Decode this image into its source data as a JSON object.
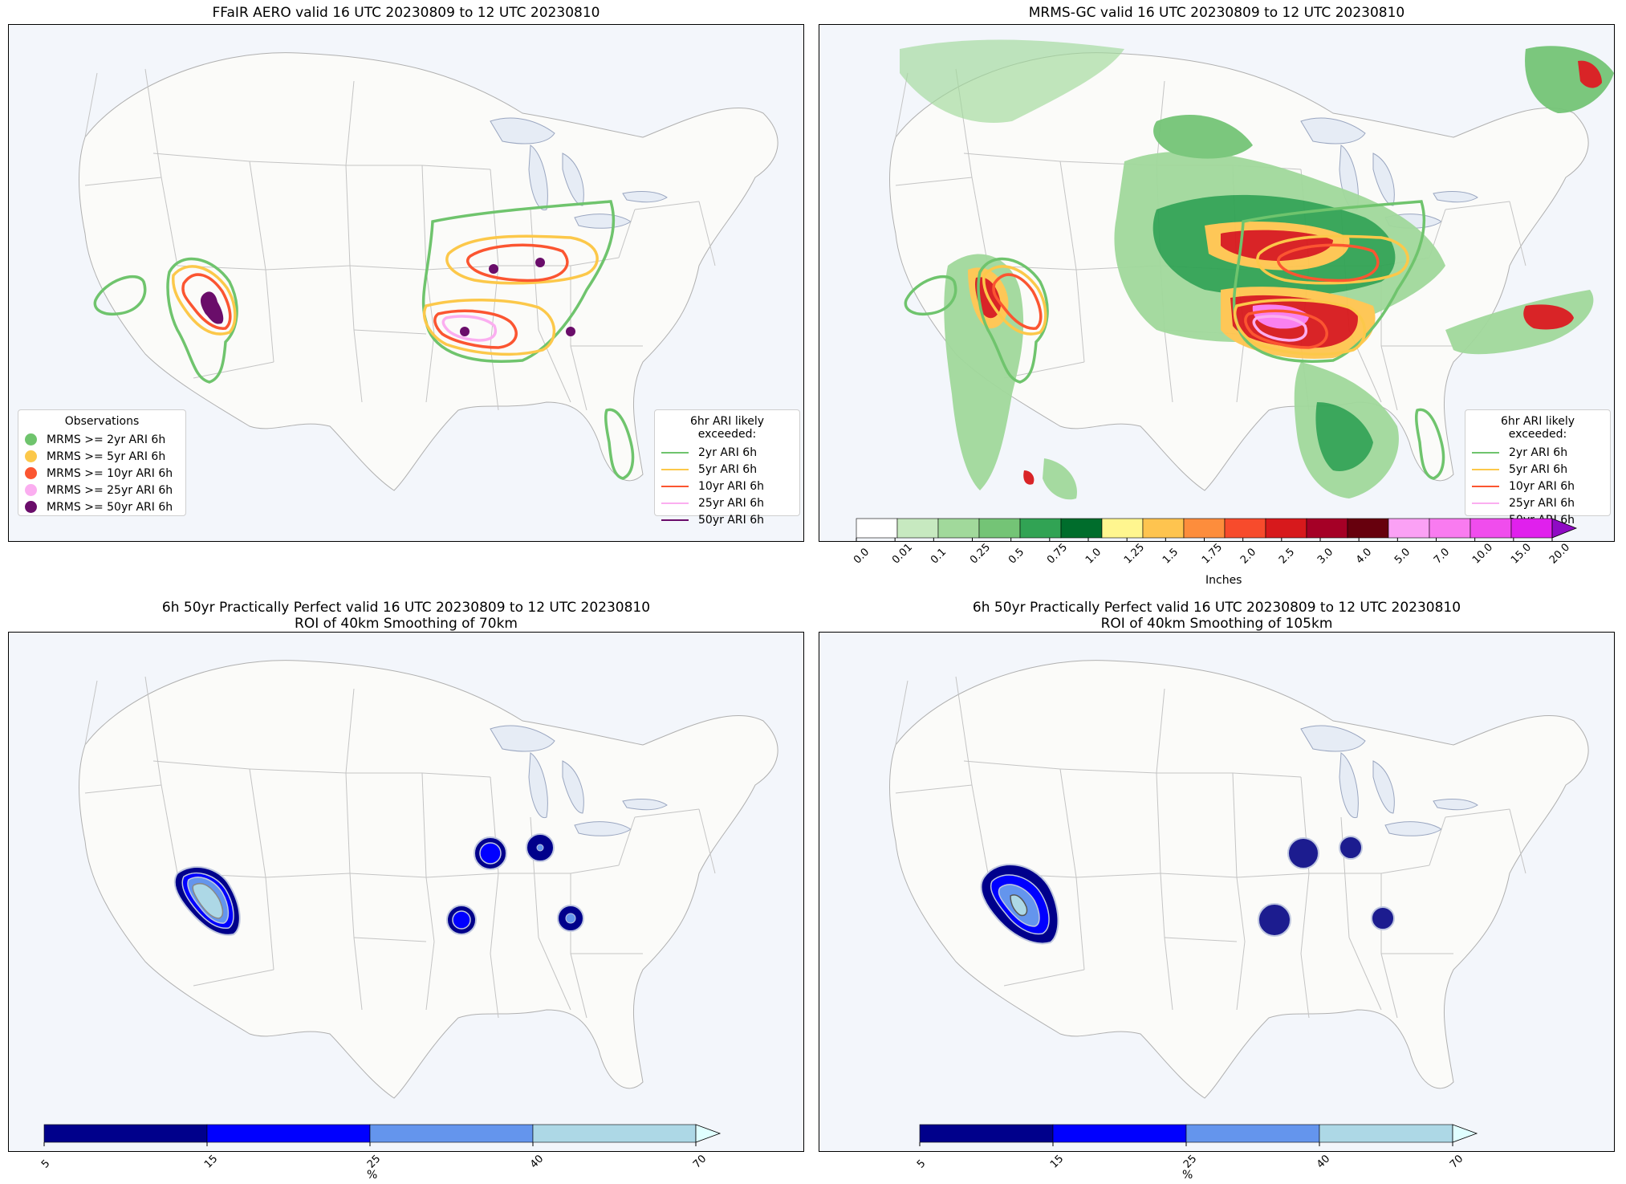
{
  "panels": [
    {
      "id": "p1",
      "title_line1": "FFaIR AERO valid 16 UTC 20230809 to 12 UTC 20230810",
      "title_line2": ""
    },
    {
      "id": "p2",
      "title_line1": "MRMS-GC valid 16 UTC 20230809 to 12 UTC 20230810",
      "title_line2": ""
    },
    {
      "id": "p3",
      "title_line1": "6h 50yr Practically Perfect valid 16 UTC 20230809 to 12 UTC 20230810",
      "title_line2": "ROI of 40km Smoothing of 70km"
    },
    {
      "id": "p4",
      "title_line1": "6h 50yr Practically Perfect valid 16 UTC 20230809 to 12 UTC 20230810",
      "title_line2": "ROI of 40km Smoothing of 105km"
    }
  ],
  "observations_legend": {
    "title": "Observations",
    "items": [
      {
        "label": "MRMS >= 2yr ARI 6h",
        "color": "#6fc46d"
      },
      {
        "label": "MRMS >= 5yr ARI 6h",
        "color": "#fcc84a"
      },
      {
        "label": "MRMS >= 10yr ARI 6h",
        "color": "#fb5531"
      },
      {
        "label": "MRMS >= 25yr ARI 6h",
        "color": "#fbaef0"
      },
      {
        "label": "MRMS >= 50yr ARI 6h",
        "color": "#6a0d6a"
      }
    ]
  },
  "ari_legend": {
    "title": "6hr ARI likely exceeded:",
    "items": [
      {
        "label": "2yr ARI 6h",
        "color": "#6fc46d"
      },
      {
        "label": "5yr ARI 6h",
        "color": "#fcc84a"
      },
      {
        "label": "10yr ARI 6h",
        "color": "#fb5531"
      },
      {
        "label": "25yr ARI 6h",
        "color": "#fbaef0"
      },
      {
        "label": "50yr ARI 6h",
        "color": "#6a0d6a"
      }
    ]
  },
  "precip_colorbar": {
    "label": "Inches",
    "ticks": [
      "0.0",
      "0.01",
      "0.1",
      "0.25",
      "0.5",
      "0.75",
      "1.0",
      "1.25",
      "1.5",
      "1.75",
      "2.0",
      "2.5",
      "3.0",
      "4.0",
      "5.0",
      "7.0",
      "10.0",
      "15.0",
      "20.0"
    ],
    "colors": [
      "#ffffff",
      "#c7e9c0",
      "#a1d99b",
      "#74c476",
      "#31a354",
      "#006d2c",
      "#fff68f",
      "#fec44f",
      "#fd8d3c",
      "#f74b2c",
      "#d7191c",
      "#a50026",
      "#67000d",
      "#fba1f5",
      "#f97bf0",
      "#f04ded",
      "#e020ed",
      "#8f0bc4"
    ]
  },
  "prob_colorbar": {
    "label": "%",
    "ticks": [
      "5",
      "15",
      "25",
      "40",
      "70"
    ],
    "colors": [
      "#00008b",
      "#0000ff",
      "#6495ed",
      "#add8e6",
      "#e0ffff"
    ]
  },
  "chart_data": {
    "type": "map",
    "ffair_outlooks": [
      {
        "level": "2yr",
        "color": "#6fc46d",
        "areas": [
          "Nevada/California border",
          "Southern Utah/Arizona",
          "Upper Midwest to Ohio Valley",
          "Florida peninsula"
        ]
      },
      {
        "level": "5yr",
        "color": "#fcc84a",
        "areas": [
          "Southern Utah/Arizona",
          "Iowa/Wisconsin/Illinois",
          "Missouri/Illinois"
        ]
      },
      {
        "level": "10yr",
        "color": "#fb5531",
        "areas": [
          "Southern Utah",
          "Iowa/Wisconsin",
          "Missouri"
        ]
      },
      {
        "level": "25yr",
        "color": "#fbaef0",
        "areas": [
          "Missouri"
        ]
      }
    ],
    "observations_50yr": [
      "Southern Utah",
      "Northern Illinois",
      "Wisconsin",
      "Missouri",
      "Kentucky"
    ],
    "practically_perfect_70km": [
      {
        "area": "Utah/Arizona",
        "max_pct": "40-70"
      },
      {
        "area": "Northern Illinois",
        "max_pct": "15-25"
      },
      {
        "area": "Northern Indiana",
        "max_pct": "15-25"
      },
      {
        "area": "Missouri",
        "max_pct": "15-25"
      },
      {
        "area": "Kentucky",
        "max_pct": "15-25"
      }
    ],
    "practically_perfect_105km": [
      {
        "area": "Utah/Arizona",
        "max_pct": "40-70"
      },
      {
        "area": "Northern Illinois",
        "max_pct": "5-15"
      },
      {
        "area": "Northern Indiana",
        "max_pct": "5-15"
      },
      {
        "area": "Missouri",
        "max_pct": "5-15"
      },
      {
        "area": "Kentucky",
        "max_pct": "5-15"
      }
    ]
  }
}
